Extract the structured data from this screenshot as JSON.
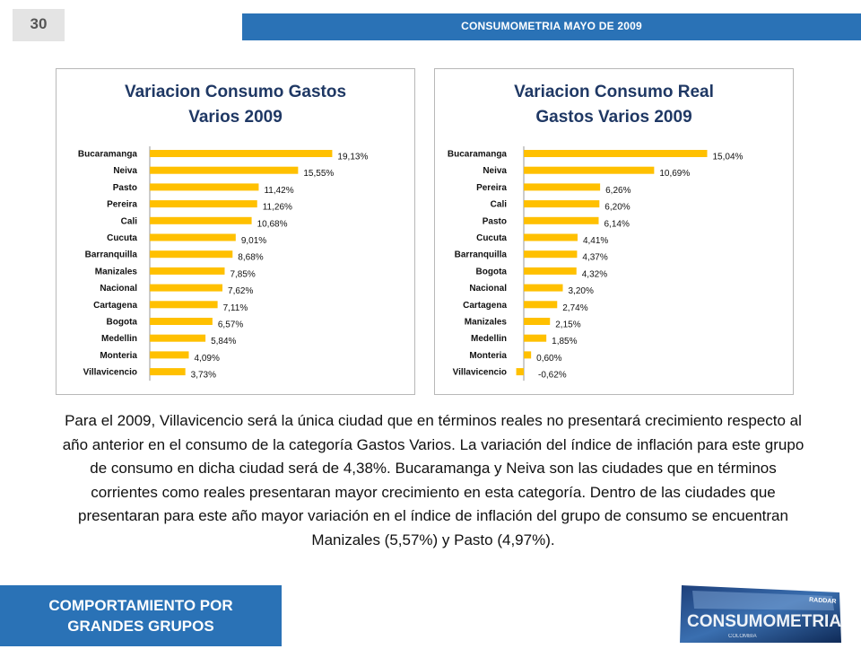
{
  "page_number": "30",
  "header": {
    "title": "CONSUMOMETRIA MAYO DE 2009"
  },
  "chart_data": [
    {
      "type": "bar",
      "orientation": "horizontal",
      "title_line1": "Variacion Consumo Gastos",
      "title_line2": "Varios 2009",
      "categories": [
        "Bucaramanga",
        "Neiva",
        "Pasto",
        "Pereira",
        "Cali",
        "Cucuta",
        "Barranquilla",
        "Manizales",
        "Nacional",
        "Cartagena",
        "Bogota",
        "Medellin",
        "Monteria",
        "Villavicencio"
      ],
      "values": [
        19.13,
        15.55,
        11.42,
        11.26,
        10.68,
        9.01,
        8.68,
        7.85,
        7.62,
        7.11,
        6.57,
        5.84,
        4.09,
        3.73
      ],
      "labels": [
        "19,13%",
        "15,55%",
        "11,42%",
        "11,26%",
        "10,68%",
        "9,01%",
        "8,68%",
        "7,85%",
        "7,62%",
        "7,11%",
        "6,57%",
        "5,84%",
        "4,09%",
        "3,73%"
      ],
      "bar_color": "#ffc000"
    },
    {
      "type": "bar",
      "orientation": "horizontal",
      "title_line1": "Variacion Consumo Real",
      "title_line2": "Gastos Varios 2009",
      "categories": [
        "Bucaramanga",
        "Neiva",
        "Pereira",
        "Cali",
        "Pasto",
        "Cucuta",
        "Barranquilla",
        "Bogota",
        "Nacional",
        "Cartagena",
        "Manizales",
        "Medellin",
        "Monteria",
        "Villavicencio"
      ],
      "values": [
        15.04,
        10.69,
        6.26,
        6.2,
        6.14,
        4.41,
        4.37,
        4.32,
        3.2,
        2.74,
        2.15,
        1.85,
        0.6,
        -0.62
      ],
      "labels": [
        "15,04%",
        "10,69%",
        "6,26%",
        "6,20%",
        "6,14%",
        "4,41%",
        "4,37%",
        "4,32%",
        "3,20%",
        "2,74%",
        "2,15%",
        "1,85%",
        "0,60%",
        "-0,62%"
      ],
      "bar_color": "#ffc000"
    }
  ],
  "body_text": "Para el 2009, Villavicencio será la única ciudad que en términos reales no presentará crecimiento respecto al año anterior en el consumo de la categoría Gastos Varios. La variación del índice de inflación para este grupo de consumo en dicha ciudad será de 4,38%. Bucaramanga y Neiva son las ciudades que en términos corrientes como reales presentaran mayor crecimiento en esta categoría. Dentro de las ciudades que presentaran para este año mayor variación en el índice de inflación del grupo de consumo se encuentran Manizales (5,57%) y Pasto (4,97%).",
  "footer": {
    "line1": "COMPORTAMIENTO POR",
    "line2": "GRANDES GRUPOS"
  },
  "logo": {
    "text": "CONSUMOMETRIA",
    "subtext": "RADDAR",
    "tagline": "COLOMBIA"
  }
}
